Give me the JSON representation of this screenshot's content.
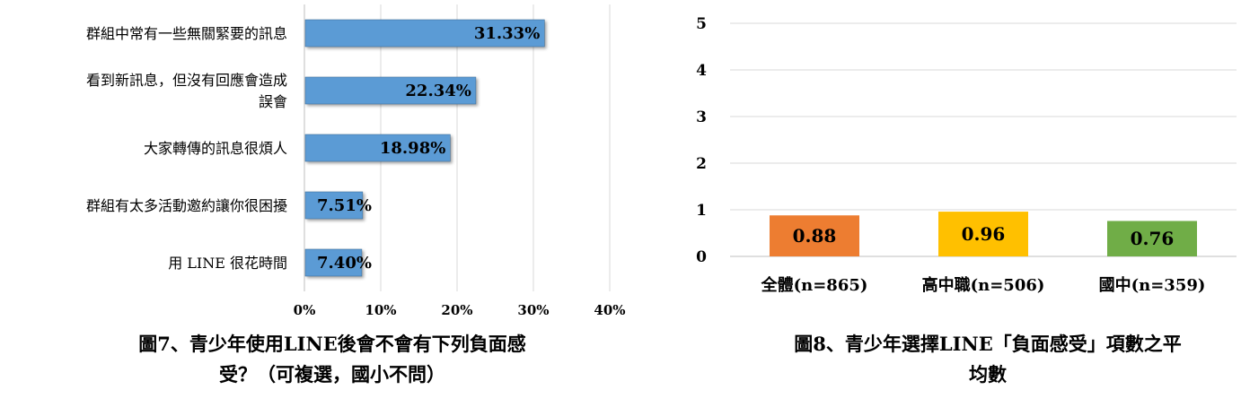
{
  "chart_data": [
    {
      "type": "bar",
      "orientation": "horizontal",
      "categories": [
        "群組中常有一些無關緊要的訊息",
        "看到新訊息，但沒有回應會造成誤會",
        "大家轉傳的訊息很煩人",
        "群組有太多活動邀約讓你很困擾",
        "用 LINE 很花時間"
      ],
      "category_lines": [
        [
          "群組中常有一些無關緊要的訊息"
        ],
        [
          "看到新訊息，但沒有回應會造成",
          "誤會"
        ],
        [
          "大家轉傳的訊息很煩人"
        ],
        [
          "群組有太多活動邀約讓你很困擾"
        ],
        [
          "用 LINE 很花時間"
        ]
      ],
      "values": [
        31.33,
        22.34,
        18.98,
        7.51,
        7.4
      ],
      "value_labels": [
        "31.33%",
        "22.34%",
        "18.98%",
        "7.51%",
        "7.40%"
      ],
      "xlim": [
        0,
        40
      ],
      "xticks": [
        "0%",
        "10%",
        "20%",
        "30%",
        "40%"
      ],
      "grid": true,
      "color": "#5b9bd5",
      "caption_lines": [
        "圖7、青少年使用LINE後會不會有下列負面感",
        "受？（可複選，國小不問）"
      ]
    },
    {
      "type": "bar",
      "orientation": "vertical",
      "categories": [
        "全體(n=865)",
        "高中職(n=506)",
        "國中(n=359)"
      ],
      "values": [
        0.88,
        0.96,
        0.76
      ],
      "value_labels": [
        "0.88",
        "0.96",
        "0.76"
      ],
      "colors": [
        "#ed7d31",
        "#ffc000",
        "#70ad47"
      ],
      "ylim": [
        0,
        5
      ],
      "yticks": [
        "0",
        "1",
        "2",
        "3",
        "4",
        "5"
      ],
      "grid": true,
      "caption_lines": [
        "圖8、青少年選擇LINE「負面感受」項數之平",
        "均數"
      ]
    }
  ]
}
